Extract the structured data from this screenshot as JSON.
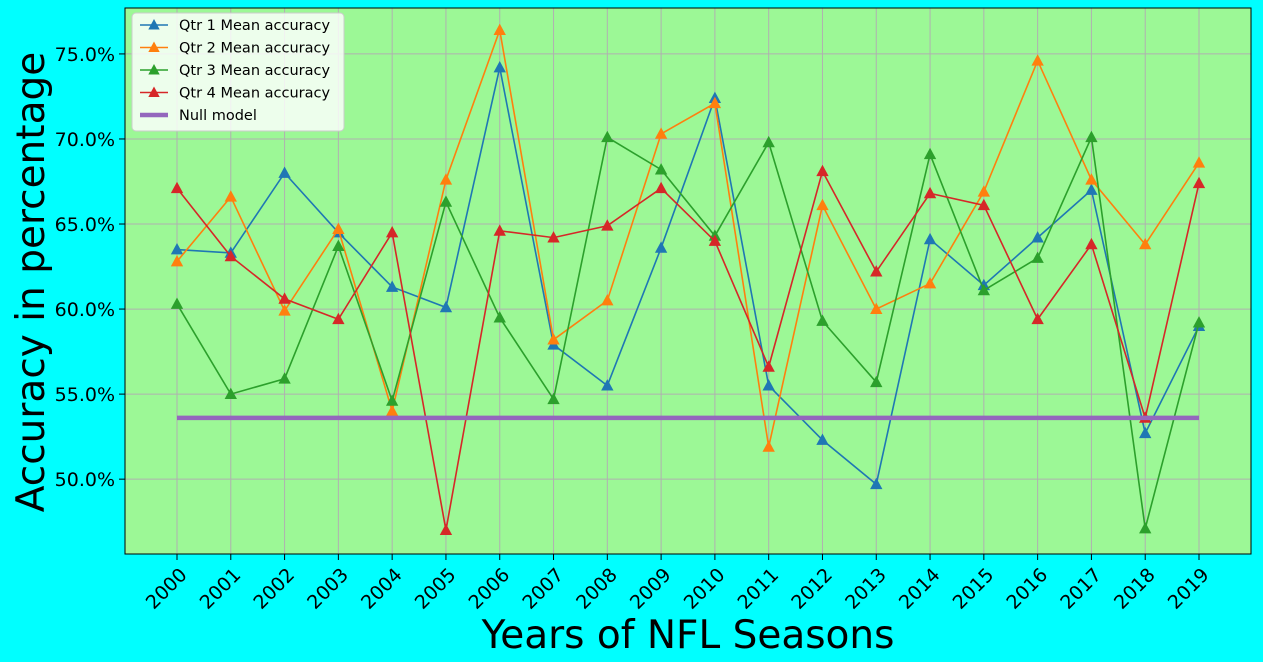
{
  "chart_data": {
    "type": "line",
    "xlabel": "Years of NFL Seasons",
    "ylabel": "Accuracy in percentage",
    "categories": [
      "2000",
      "2001",
      "2002",
      "2003",
      "2004",
      "2005",
      "2006",
      "2007",
      "2008",
      "2009",
      "2010",
      "2011",
      "2012",
      "2013",
      "2014",
      "2015",
      "2016",
      "2017",
      "2018",
      "2019"
    ],
    "y_ticks": [
      "50.0%",
      "55.0%",
      "60.0%",
      "65.0%",
      "70.0%",
      "75.0%"
    ],
    "y_tick_values": [
      50,
      55,
      60,
      65,
      70,
      75
    ],
    "ylim": [
      45.6,
      77.7
    ],
    "grid": true,
    "legend_position": "top-left",
    "plot_background": "#9cf896",
    "page_background": "#00ffff",
    "series": [
      {
        "name": "Qtr 1 Mean accuracy",
        "color": "#1f77b4",
        "marker": "triangle",
        "values": [
          63.5,
          63.3,
          68.0,
          64.5,
          61.3,
          60.1,
          74.2,
          57.9,
          55.5,
          63.6,
          72.4,
          55.5,
          52.3,
          49.7,
          64.1,
          61.4,
          64.2,
          67.0,
          52.7,
          59.0
        ]
      },
      {
        "name": "Qtr 2 Mean accuracy",
        "color": "#ff7f0e",
        "marker": "triangle",
        "values": [
          62.8,
          66.6,
          59.9,
          64.7,
          54.0,
          67.6,
          76.4,
          58.2,
          60.5,
          70.3,
          72.1,
          51.9,
          66.1,
          60.0,
          61.5,
          66.9,
          74.6,
          67.6,
          63.8,
          68.6
        ]
      },
      {
        "name": "Qtr 3 Mean accuracy",
        "color": "#2ca02c",
        "marker": "triangle",
        "values": [
          60.3,
          55.0,
          55.9,
          63.7,
          54.6,
          66.3,
          59.5,
          54.7,
          70.1,
          68.2,
          64.3,
          69.8,
          59.3,
          55.7,
          69.1,
          61.1,
          63.0,
          70.1,
          47.1,
          59.2
        ]
      },
      {
        "name": "Qtr 4 Mean accuracy",
        "color": "#d62728",
        "marker": "triangle",
        "values": [
          67.1,
          63.1,
          60.6,
          59.4,
          64.5,
          47.0,
          64.6,
          64.2,
          64.9,
          67.1,
          64.0,
          56.6,
          68.1,
          62.2,
          66.8,
          66.1,
          59.4,
          63.8,
          53.6,
          67.4
        ]
      },
      {
        "name": "Null model",
        "color": "#9467bd",
        "marker": "none",
        "constant": 53.6
      }
    ]
  }
}
